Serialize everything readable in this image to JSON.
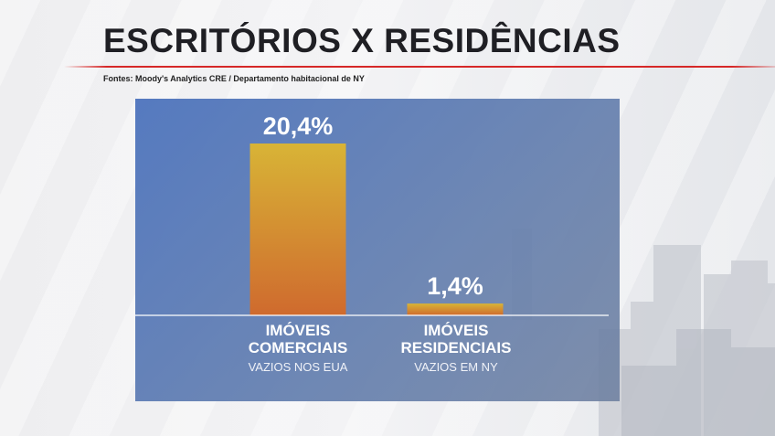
{
  "header": {
    "title": "ESCRITÓRIOS X RESIDÊNCIAS",
    "sources": "Fontes: Moody's Analytics CRE / Departamento habitacional de NY"
  },
  "colors": {
    "accent_line": "#d62828",
    "panel": "#5576b8",
    "bar_top": "#d8b436",
    "bar_bottom": "#cf6a2e"
  },
  "chart_data": {
    "type": "bar",
    "title": "ESCRITÓRIOS X RESIDÊNCIAS",
    "categories": [
      "IMÓVEIS COMERCIAIS VAZIOS NOS EUA",
      "IMÓVEIS RESIDENCIAIS VAZIOS EM NY"
    ],
    "category_lines": [
      [
        "IMÓVEIS",
        "COMERCIAIS",
        "VAZIOS NOS EUA"
      ],
      [
        "IMÓVEIS",
        "RESIDENCIAIS",
        "VAZIOS EM NY"
      ]
    ],
    "values": [
      20.4,
      1.4
    ],
    "value_labels": [
      "20,4%",
      "1,4%"
    ],
    "unit": "%",
    "ylim": [
      0,
      20.4
    ],
    "grid": false,
    "legend": "none"
  }
}
